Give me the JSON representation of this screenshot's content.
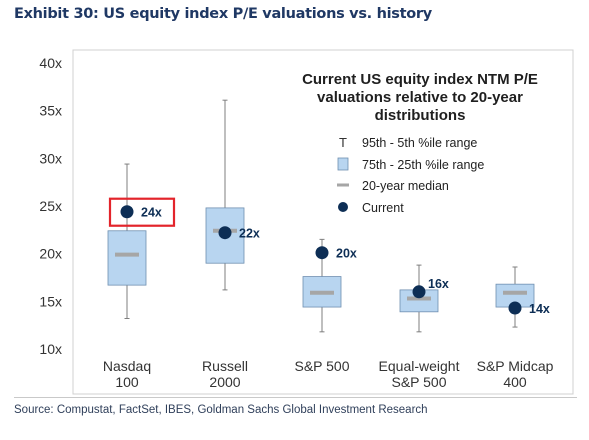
{
  "exhibit_title": "Exhibit 30: US equity index P/E valuations vs. history",
  "source": "Source: Compustat, FactSet, IBES, Goldman Sachs Global Investment Research",
  "colors": {
    "title": "#1f3864",
    "box_fill": "#b8d5f0",
    "box_stroke": "#6f8fb0",
    "whisker": "#7f7f7f",
    "median": "#a6a6a6",
    "current": "#0d2e55",
    "highlight": "#e3242b",
    "frame": "#d0d0d0"
  },
  "chart_data": {
    "type": "box",
    "title_lines": [
      "Current US equity index NTM P/E",
      "valuations relative to 20-year",
      "distributions"
    ],
    "ylim": [
      10,
      40
    ],
    "yticks": [
      10,
      15,
      20,
      25,
      30,
      35,
      40
    ],
    "ytick_labels": [
      "10x",
      "15x",
      "20x",
      "25x",
      "30x",
      "35x",
      "40x"
    ],
    "legend": {
      "position": "top-right",
      "entries": [
        {
          "symbol": "T",
          "label": "95th - 5th %ile range"
        },
        {
          "symbol": "box",
          "label": "75th - 25th %ile range"
        },
        {
          "symbol": "dash",
          "label": "20-year median"
        },
        {
          "symbol": "dot",
          "label": "Current"
        }
      ]
    },
    "categories": [
      {
        "label_lines": [
          "Nasdaq",
          "100"
        ],
        "p5": 13.2,
        "p25": 16.7,
        "median": 19.9,
        "p75": 22.4,
        "p95": 29.4,
        "current": 24.4,
        "current_label": "24x",
        "highlight": true
      },
      {
        "label_lines": [
          "Russell",
          "2000"
        ],
        "p5": 16.2,
        "p25": 19.0,
        "median": 22.4,
        "p75": 24.8,
        "p95": 36.1,
        "current": 22.2,
        "current_label": "22x",
        "highlight": false
      },
      {
        "label_lines": [
          "S&P 500"
        ],
        "p5": 11.8,
        "p25": 14.4,
        "median": 15.9,
        "p75": 17.6,
        "p95": 21.5,
        "current": 20.1,
        "current_label": "20x",
        "highlight": false
      },
      {
        "label_lines": [
          "Equal-weight",
          "S&P 500"
        ],
        "p5": 11.8,
        "p25": 13.9,
        "median": 15.3,
        "p75": 16.2,
        "p95": 18.8,
        "current": 16.0,
        "current_label": "16x",
        "highlight": false
      },
      {
        "label_lines": [
          "S&P Midcap",
          "400"
        ],
        "p5": 12.3,
        "p25": 14.4,
        "median": 15.9,
        "p75": 16.8,
        "p95": 18.6,
        "current": 14.3,
        "current_label": "14x",
        "highlight": false
      }
    ]
  }
}
